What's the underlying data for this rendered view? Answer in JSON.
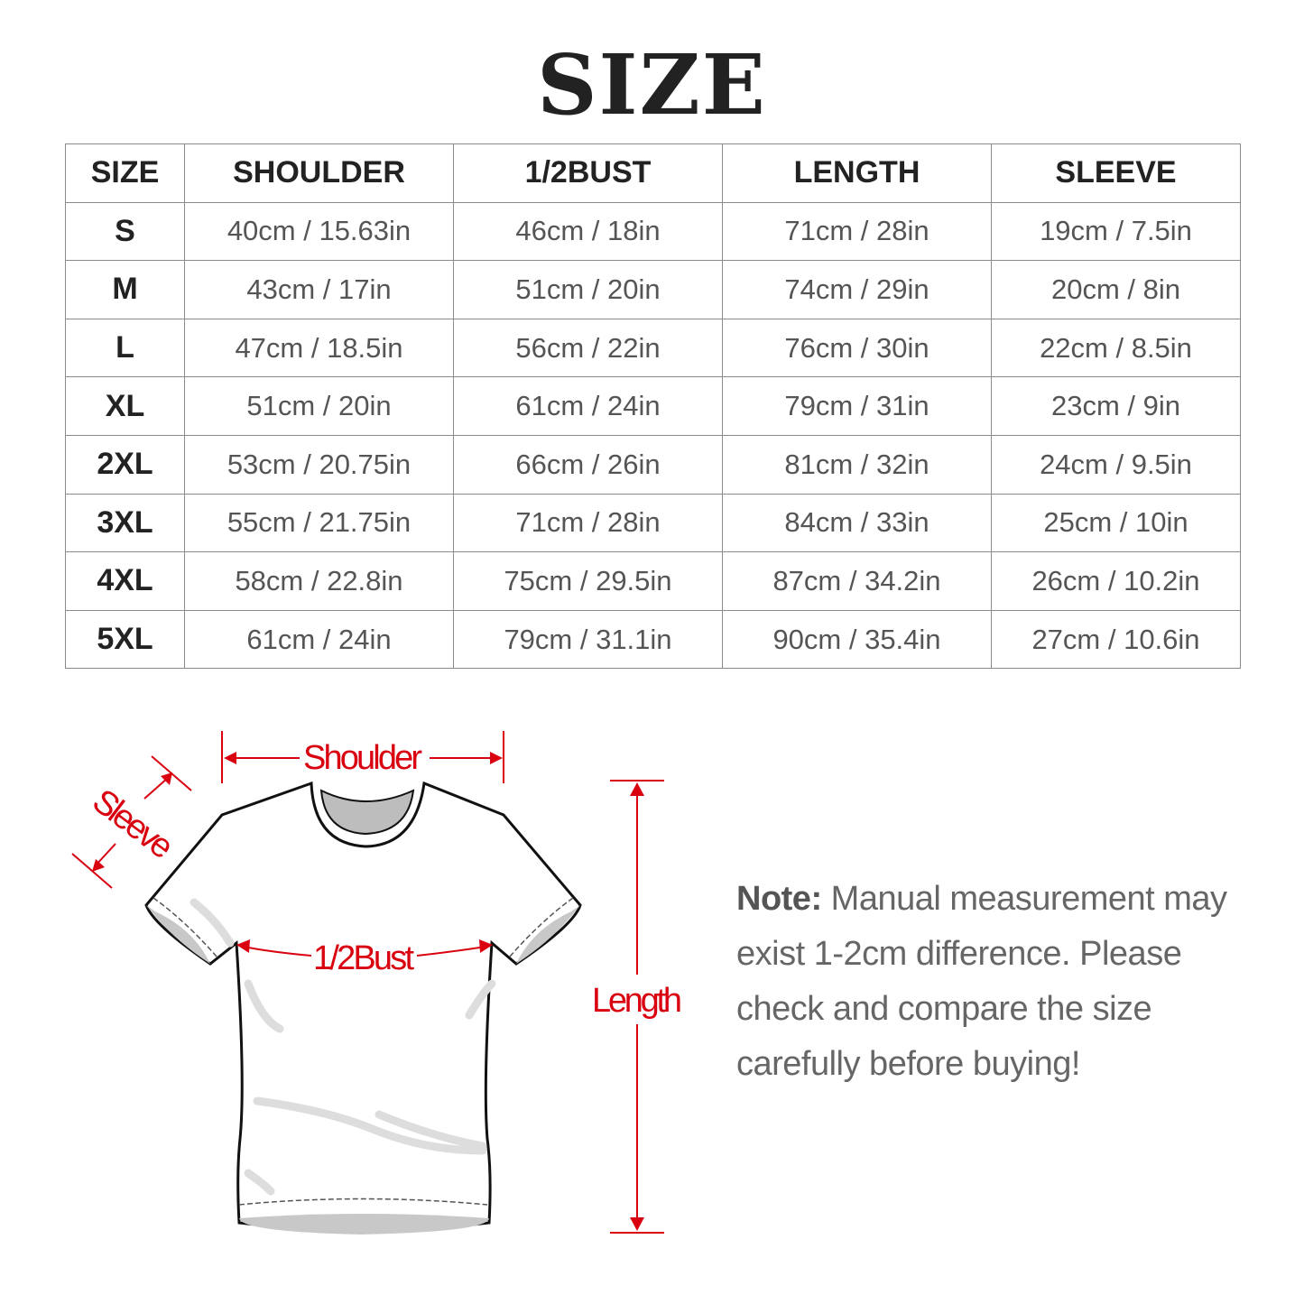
{
  "title": "SIZE",
  "table": {
    "headers": [
      "SIZE",
      "SHOULDER",
      "1/2BUST",
      "LENGTH",
      "SLEEVE"
    ],
    "rows": [
      [
        "S",
        "40cm / 15.63in",
        "46cm / 18in",
        "71cm / 28in",
        "19cm / 7.5in"
      ],
      [
        "M",
        "43cm / 17in",
        "51cm / 20in",
        "74cm / 29in",
        "20cm / 8in"
      ],
      [
        "L",
        "47cm / 18.5in",
        "56cm / 22in",
        "76cm / 30in",
        "22cm / 8.5in"
      ],
      [
        "XL",
        "51cm / 20in",
        "61cm / 24in",
        "79cm / 31in",
        "23cm / 9in"
      ],
      [
        "2XL",
        "53cm / 20.75in",
        "66cm / 26in",
        "81cm / 32in",
        "24cm / 9.5in"
      ],
      [
        "3XL",
        "55cm / 21.75in",
        "71cm / 28in",
        "84cm / 33in",
        "25cm / 10in"
      ],
      [
        "4XL",
        "58cm / 22.8in",
        "75cm / 29.5in",
        "87cm / 34.2in",
        "26cm / 10.2in"
      ],
      [
        "5XL",
        "61cm / 24in",
        "79cm / 31.1in",
        "90cm / 35.4in",
        "27cm / 10.6in"
      ]
    ]
  },
  "diagram": {
    "shoulder": "Shoulder",
    "sleeve": "Sleeve",
    "bust": "1/2Bust",
    "length": "Length",
    "accent_color": "#d9000f"
  },
  "note": {
    "label": "Note:",
    "text": "Manual measurement may exist 1-2cm difference. Please check and compare the size carefully before buying!"
  }
}
